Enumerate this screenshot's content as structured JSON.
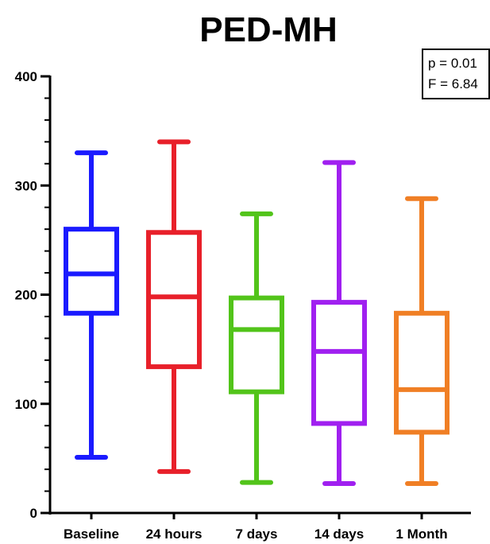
{
  "chart_data": {
    "type": "boxplot",
    "title": "PED-MH",
    "xlabel": "",
    "ylabel": "",
    "ylim": [
      0,
      400
    ],
    "yticks": [
      0,
      100,
      200,
      300,
      400
    ],
    "grid": false,
    "categories": [
      "Baseline",
      "24 hours",
      "7 days",
      "14 days",
      "1 Month"
    ],
    "boxes": [
      {
        "category": "Baseline",
        "color": "#1a1aff",
        "min": 51,
        "q1": 183,
        "median": 219,
        "q3": 260,
        "max": 330
      },
      {
        "category": "24 hours",
        "color": "#e8202a",
        "min": 38,
        "q1": 134,
        "median": 198,
        "q3": 257,
        "max": 340
      },
      {
        "category": "7 days",
        "color": "#52c41a",
        "min": 28,
        "q1": 111,
        "median": 168,
        "q3": 197,
        "max": 274
      },
      {
        "category": "14 days",
        "color": "#a020f0",
        "min": 27,
        "q1": 82,
        "median": 148,
        "q3": 193,
        "max": 321
      },
      {
        "category": "1 Month",
        "color": "#f07f25",
        "min": 27,
        "q1": 74,
        "median": 113,
        "q3": 183,
        "max": 288
      }
    ],
    "annotation": {
      "line1": "p = 0.01",
      "line2": "F = 6.84",
      "placement": "top-right"
    }
  }
}
